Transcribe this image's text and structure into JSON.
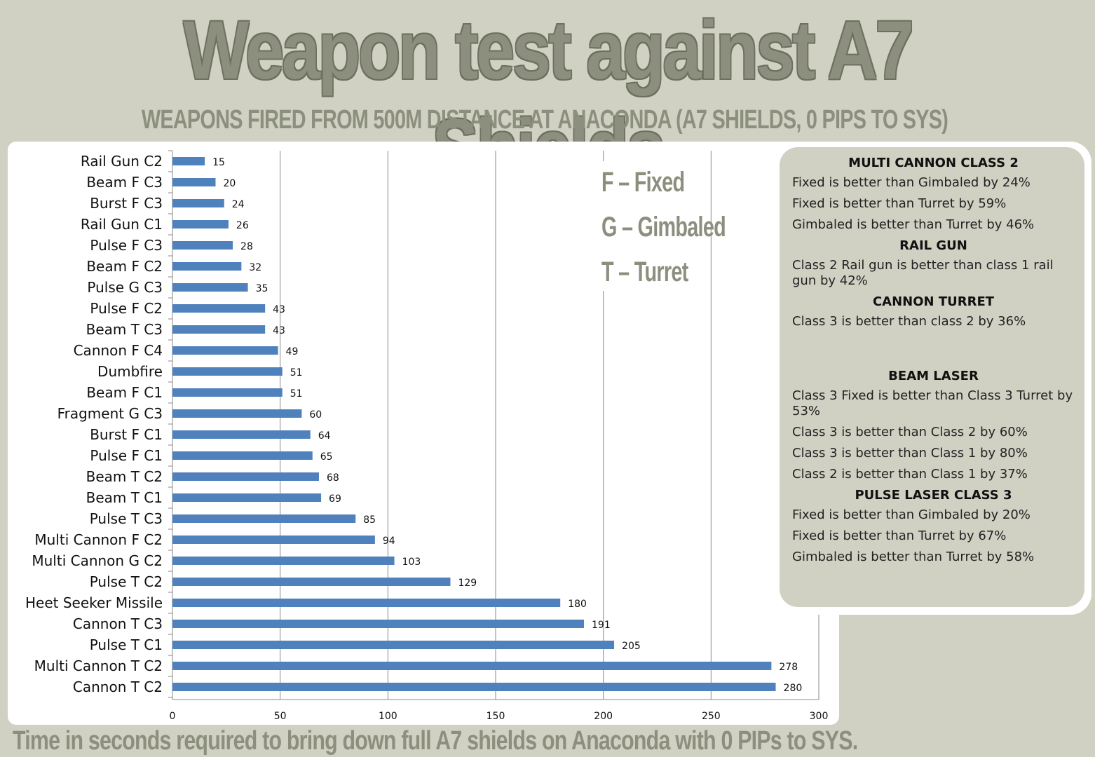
{
  "title": "Weapon test against A7 Shields",
  "subtitle": "WEAPONS FIRED FROM 500M DISTANCE AT ANACONDA (A7 SHIELDS, 0 PIPS TO SYS)",
  "footnote": "Time in seconds required to bring down full A7 shields on Anaconda with 0 PIPs to SYS.",
  "legend": [
    "F – Fixed",
    "G – Gimbaled",
    "T – Turret"
  ],
  "colors": {
    "bar": "#4f81bd",
    "background": "#d0d0c3",
    "title": "#8c8f7e"
  },
  "notes": [
    {
      "heading": "MULTI CANNON CLASS 2",
      "lines": [
        "Fixed is better than Gimbaled by 24%",
        "Fixed is better than Turret by 59%",
        "Gimbaled is better than Turret by 46%"
      ]
    },
    {
      "heading": "RAIL GUN",
      "lines": [
        "Class 2 Rail gun is better than class 1 rail gun by 42%"
      ]
    },
    {
      "heading": "CANNON TURRET",
      "lines": [
        "Class 3 is better than class 2 by 36%"
      ]
    },
    {
      "heading": "BEAM LASER",
      "lines": [
        "Class 3 Fixed is better than Class 3 Turret by 53%",
        "Class 3 is better than Class 2 by 60%",
        "Class 3 is better than Class 1 by 80%",
        "Class 2 is better than Class 1 by 37%"
      ]
    },
    {
      "heading": "PULSE LASER CLASS 3",
      "lines": [
        "Fixed is better than Gimbaled by 20%",
        "Fixed is better than Turret by 67%",
        "Gimbaled is better than Turret by 58%"
      ]
    }
  ],
  "chart_data": {
    "type": "bar",
    "orientation": "horizontal",
    "categories": [
      "Rail Gun C2",
      "Beam F C3",
      "Burst F C3",
      "Rail Gun C1",
      "Pulse F C3",
      "Beam F C2",
      "Pulse G C3",
      "Pulse F C2",
      "Beam T C3",
      "Cannon F C4",
      "Dumbfire",
      "Beam F C1",
      "Fragment G C3",
      "Burst F C1",
      "Pulse F C1",
      "Beam T C2",
      "Beam T C1",
      "Pulse T C3",
      "Multi Cannon F C2",
      "Multi Cannon G C2",
      "Pulse T C2",
      "Heet Seeker Missile",
      "Cannon T C3",
      "Pulse T C1",
      "Multi Cannon T C2",
      "Cannon T C2"
    ],
    "values": [
      15,
      20,
      24,
      26,
      28,
      32,
      35,
      43,
      43,
      49,
      51,
      51,
      60,
      64,
      65,
      68,
      69,
      85,
      94,
      103,
      129,
      180,
      191,
      205,
      278,
      280
    ],
    "xlim": [
      0,
      300
    ],
    "xticks": [
      0,
      50,
      100,
      150,
      200,
      250,
      300
    ],
    "grid": "vertical",
    "data_labels": true
  }
}
